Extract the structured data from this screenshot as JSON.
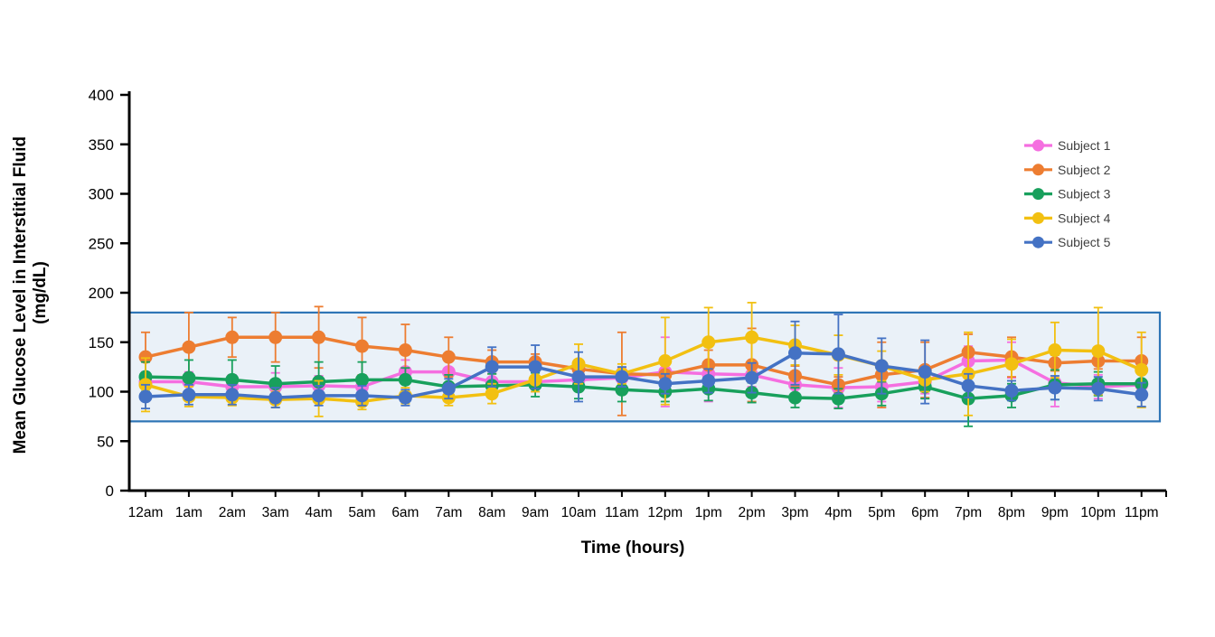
{
  "chart_data": {
    "type": "line",
    "title": "",
    "xlabel": "Time (hours)",
    "ylabel_line1": "Mean Glucose Level in Interstitial Fluid",
    "ylabel_line2": "(mg/dL)",
    "ylim": [
      0,
      400
    ],
    "ytick_step": 50,
    "grid": false,
    "legend_position": "right",
    "categories": [
      "12am",
      "1am",
      "2am",
      "3am",
      "4am",
      "5am",
      "6am",
      "7am",
      "8am",
      "9am",
      "10am",
      "11am",
      "12pm",
      "1pm",
      "2pm",
      "3pm",
      "4pm",
      "5pm",
      "6pm",
      "7pm",
      "8pm",
      "9pm",
      "10pm",
      "11pm"
    ],
    "reference_band": {
      "low": 70,
      "high": 180,
      "fill_color": "#EAF1F8",
      "stroke_color": "#2E75B6"
    },
    "series": [
      {
        "name": "Subject 1",
        "color": "#F56EE0",
        "values": [
          110,
          110,
          105,
          105,
          106,
          105,
          120,
          120,
          110,
          110,
          112,
          114,
          120,
          118,
          117,
          107,
          104,
          105,
          110,
          131,
          132,
          109,
          105,
          107
        ],
        "errors": [
          10,
          10,
          12,
          14,
          10,
          10,
          12,
          14,
          10,
          10,
          10,
          10,
          35,
          28,
          12,
          12,
          20,
          15,
          12,
          15,
          18,
          24,
          12,
          12
        ]
      },
      {
        "name": "Subject 2",
        "color": "#ED7D31",
        "values": [
          135,
          145,
          155,
          155,
          155,
          146,
          142,
          135,
          130,
          130,
          123,
          118,
          117,
          127,
          127,
          116,
          107,
          117,
          122,
          140,
          135,
          129,
          131,
          131
        ],
        "errors": [
          25,
          35,
          20,
          25,
          31,
          29,
          26,
          20,
          12,
          8,
          8,
          42,
          10,
          15,
          37,
          10,
          8,
          33,
          28,
          18,
          20,
          8,
          8,
          24
        ]
      },
      {
        "name": "Subject 3",
        "color": "#18A05C",
        "values": [
          115,
          114,
          112,
          108,
          110,
          112,
          112,
          105,
          106,
          107,
          105,
          102,
          100,
          103,
          99,
          94,
          93,
          98,
          105,
          93,
          96,
          107,
          108,
          108
        ],
        "errors": [
          15,
          18,
          20,
          18,
          20,
          18,
          12,
          12,
          12,
          12,
          12,
          12,
          10,
          12,
          10,
          10,
          10,
          12,
          12,
          28,
          12,
          15,
          12,
          12
        ]
      },
      {
        "name": "Subject 4",
        "color": "#F2C011",
        "values": [
          107,
          95,
          94,
          92,
          93,
          90,
          96,
          94,
          98,
          112,
          128,
          118,
          131,
          150,
          155,
          147,
          137,
          126,
          112,
          118,
          128,
          142,
          141,
          122
        ],
        "errors": [
          27,
          10,
          8,
          8,
          18,
          8,
          8,
          8,
          10,
          12,
          20,
          10,
          44,
          35,
          35,
          20,
          20,
          15,
          12,
          42,
          25,
          28,
          44,
          38
        ]
      },
      {
        "name": "Subject 5",
        "color": "#4472C4",
        "values": [
          95,
          97,
          97,
          94,
          96,
          96,
          94,
          103,
          125,
          125,
          115,
          115,
          108,
          111,
          114,
          139,
          138,
          126,
          120,
          106,
          101,
          104,
          103,
          97
        ],
        "errors": [
          12,
          10,
          10,
          10,
          10,
          10,
          8,
          10,
          20,
          22,
          25,
          10,
          10,
          12,
          15,
          32,
          40,
          28,
          32,
          12,
          10,
          12,
          12,
          12
        ]
      }
    ]
  }
}
